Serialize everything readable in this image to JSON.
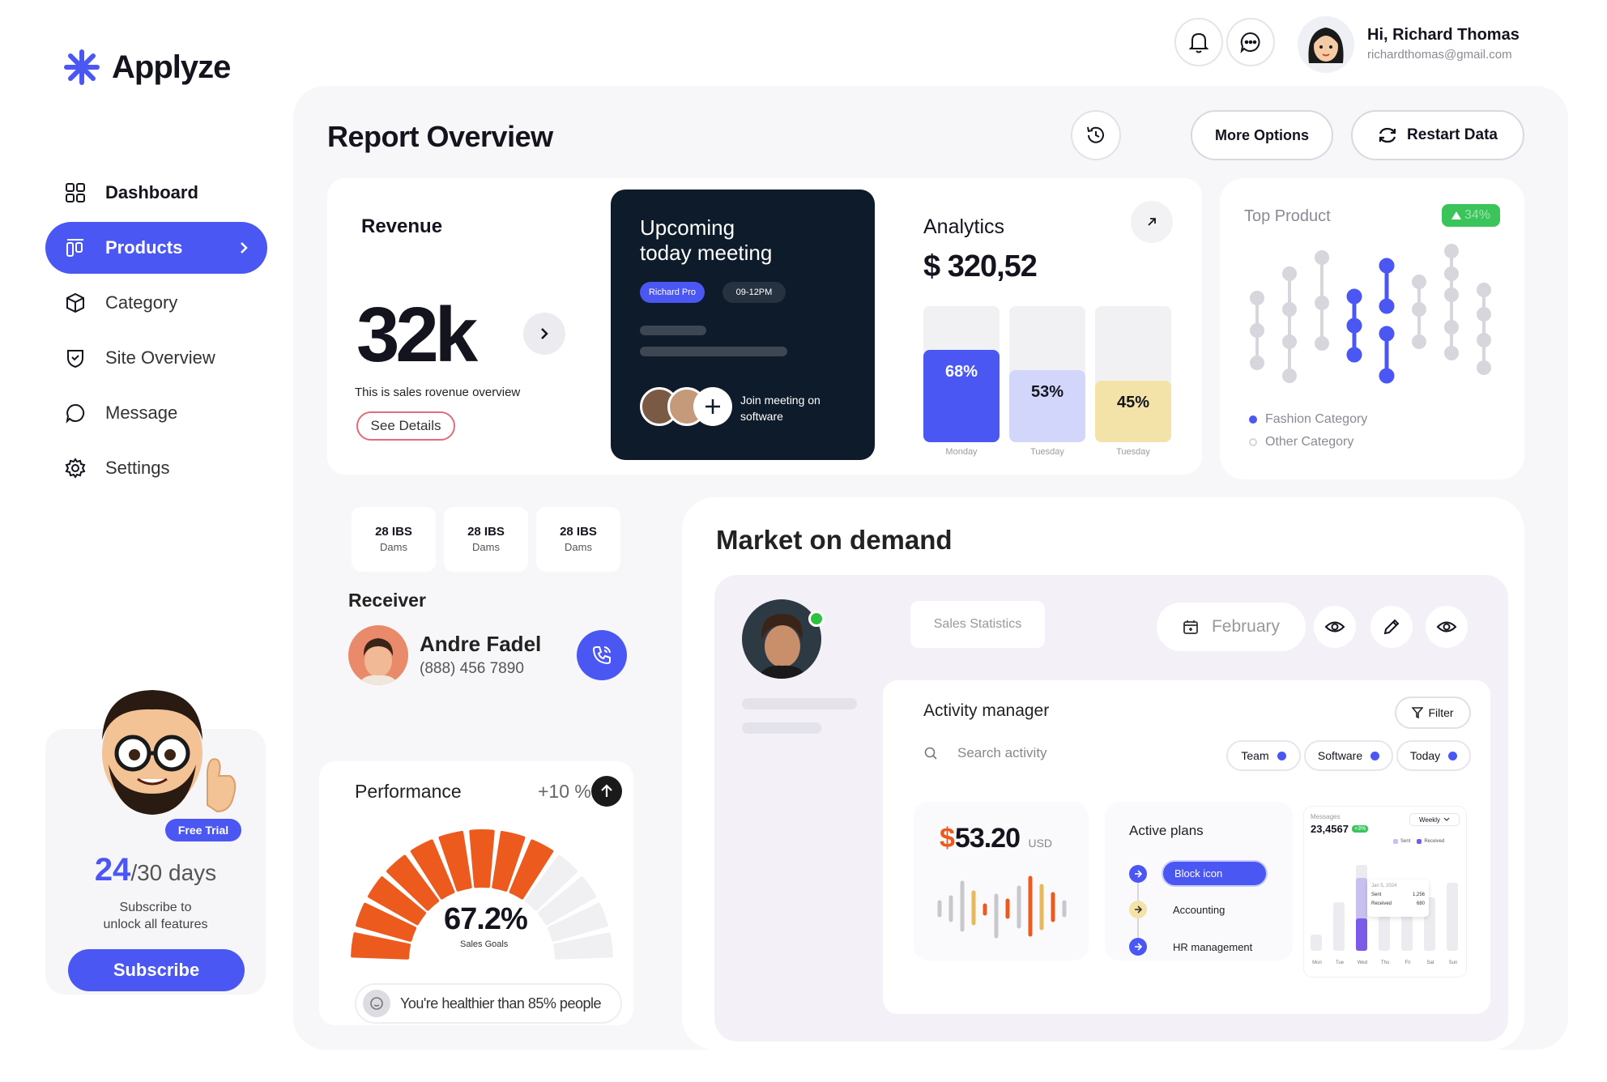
{
  "brand": {
    "name": "Applyze"
  },
  "user": {
    "greeting": "Hi, Richard Thomas",
    "email": "richardthomas@gmail.com"
  },
  "sidebar": {
    "items": [
      {
        "label": "Dashboard",
        "icon": "grid-icon"
      },
      {
        "label": "Products",
        "icon": "products-icon",
        "active": true
      },
      {
        "label": "Category",
        "icon": "box-icon"
      },
      {
        "label": "Site Overview",
        "icon": "shield-icon"
      },
      {
        "label": "Message",
        "icon": "chat-bubble-icon"
      },
      {
        "label": "Settings",
        "icon": "gear-icon"
      }
    ]
  },
  "trial": {
    "badge": "Free Trial",
    "days_used": "24",
    "days_total": "/30 days",
    "line1": "Subscribe to",
    "line2": "unlock all features",
    "button": "Subscribe"
  },
  "header": {
    "title": "Report Overview",
    "more_options": "More Options",
    "restart": "Restart Data"
  },
  "revenue": {
    "title": "Revenue",
    "value": "32k",
    "caption": "This is sales rovenue overview",
    "button": "See Details"
  },
  "meeting": {
    "title_line1": "Upcoming",
    "title_line2": "today meeting",
    "tag1": "Richard Pro",
    "tag2": "09-12PM",
    "join_line1": "Join meeting on",
    "join_line2": "software"
  },
  "analytics": {
    "title": "Analytics",
    "currency": "$",
    "amount": "320,52",
    "bars": [
      {
        "pct": 68,
        "label": "68%",
        "day": "Monday",
        "color": "#4b57f2",
        "text": "#ffffff"
      },
      {
        "pct": 53,
        "label": "53%",
        "day": "Tuesday",
        "color": "#d3d6fb",
        "text": "#14141f"
      },
      {
        "pct": 45,
        "label": "45%",
        "day": "Tuesday",
        "color": "#f3e3a8",
        "text": "#14141f"
      }
    ]
  },
  "top_product": {
    "title": "Top Product",
    "badge": "34%",
    "legend": [
      "Fashion Category",
      "Other Category"
    ]
  },
  "weights": [
    {
      "value": "28 IBS",
      "label": "Dams"
    },
    {
      "value": "28 IBS",
      "label": "Dams"
    },
    {
      "value": "28 IBS",
      "label": "Dams"
    }
  ],
  "receiver": {
    "title": "Receiver",
    "name": "Andre Fadel",
    "phone": "(888) 456 7890"
  },
  "performance": {
    "title": "Performance",
    "change": "+10 %",
    "value": "67.2%",
    "label": "Sales Goals",
    "note": "You're healthier than 85% people",
    "progress": 0.672
  },
  "market": {
    "title": "Market on demand",
    "sales_stats": "Sales Statistics",
    "month": "February",
    "activity": {
      "title": "Activity manager",
      "filter": "Filter",
      "search_placeholder": "Search activity",
      "chips": [
        "Team",
        "Software",
        "Today"
      ],
      "amount_symbol": "$",
      "amount": "53.20",
      "amount_currency": "USD",
      "plans_title": "Active plans",
      "plans": [
        "Block icon",
        "Accounting",
        "HR management"
      ]
    },
    "mini_chart": {
      "title": "Messages",
      "value": "23,4567",
      "delta": "+3%",
      "period": "Weekly",
      "legend": [
        "Sent",
        "Received"
      ],
      "tooltip_date": "Jan 5, 2024",
      "tooltip_sent_label": "Sent",
      "tooltip_sent": "1,256",
      "tooltip_recv_label": "Received",
      "tooltip_recv": "680",
      "days": [
        "Mon",
        "Tue",
        "Wed",
        "Thu",
        "Fri",
        "Sat",
        "Sun"
      ]
    }
  },
  "colors": {
    "accent": "#4b57f2",
    "dark": "#0d1b2a",
    "orange": "#ec5a1e",
    "green": "#3bc45a"
  }
}
